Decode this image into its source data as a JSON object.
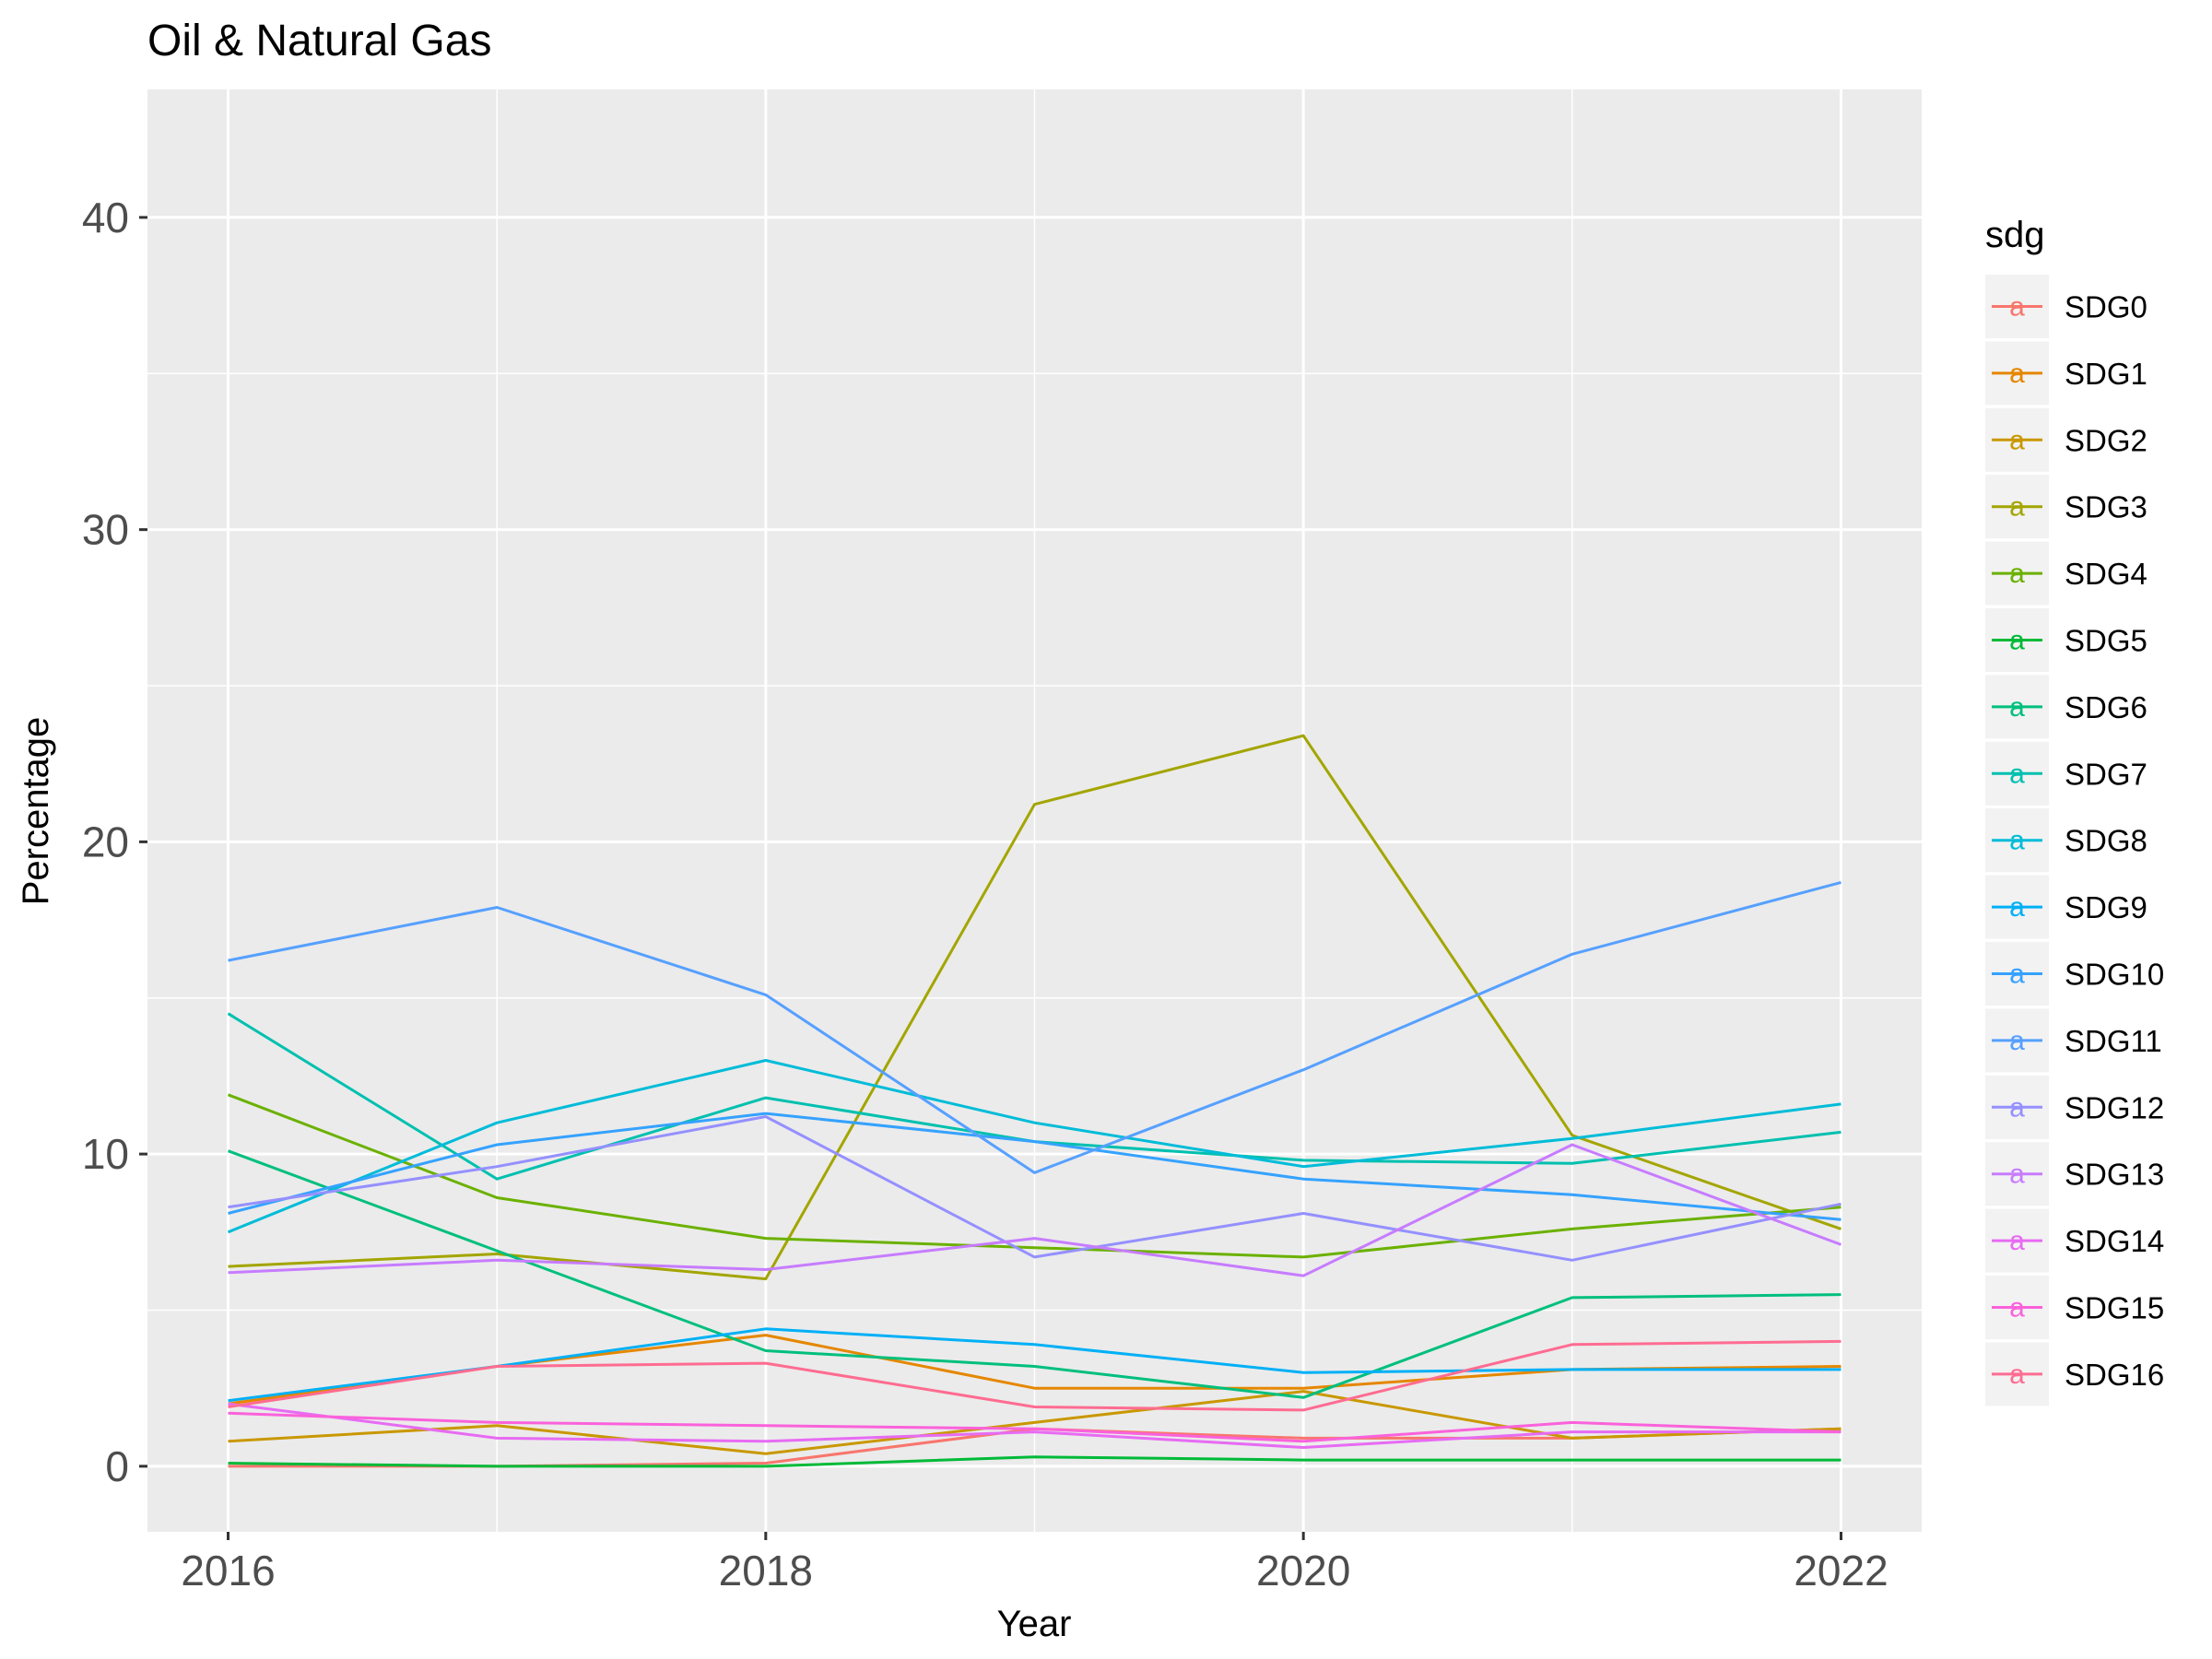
{
  "chart_data": {
    "type": "line",
    "title": "Oil & Natural Gas",
    "xlabel": "Year",
    "ylabel": "Percentage",
    "xlim": [
      2015.7,
      2022.3
    ],
    "ylim": [
      -2.1,
      44.1
    ],
    "x_ticks": [
      2016,
      2018,
      2020,
      2022
    ],
    "x_tick_labels": [
      "2016",
      "2018",
      "2020",
      "2022"
    ],
    "y_ticks": [
      0,
      10,
      20,
      30,
      40
    ],
    "y_tick_labels": [
      "0",
      "10",
      "20",
      "30",
      "40"
    ],
    "grid": true,
    "legend": {
      "title": "sdg",
      "position": "right",
      "key_glyph": "a"
    },
    "x": [
      2016,
      2017,
      2018,
      2019,
      2020,
      2021,
      2022
    ],
    "series": [
      {
        "name": "SDG0",
        "color": "#F8766D",
        "values": [
          0.0,
          0.0,
          0.1,
          1.2,
          0.9,
          0.9,
          1.2
        ]
      },
      {
        "name": "SDG1",
        "color": "#E58700",
        "values": [
          2.0,
          3.2,
          4.2,
          2.5,
          2.5,
          3.1,
          3.2
        ]
      },
      {
        "name": "SDG2",
        "color": "#C99800",
        "values": [
          0.8,
          1.3,
          0.4,
          1.4,
          2.4,
          0.9,
          1.2
        ]
      },
      {
        "name": "SDG3",
        "color": "#A3A500",
        "values": [
          6.4,
          6.8,
          6.0,
          21.2,
          23.4,
          10.6,
          7.6
        ]
      },
      {
        "name": "SDG4",
        "color": "#6BB100",
        "values": [
          11.9,
          8.6,
          7.3,
          7.0,
          6.7,
          7.6,
          8.3
        ]
      },
      {
        "name": "SDG5",
        "color": "#00BA38",
        "values": [
          0.1,
          0.0,
          0.0,
          0.3,
          0.2,
          0.2,
          0.2
        ]
      },
      {
        "name": "SDG6",
        "color": "#00BF7D",
        "values": [
          10.1,
          6.9,
          3.7,
          3.2,
          2.2,
          5.4,
          5.5
        ]
      },
      {
        "name": "SDG7",
        "color": "#00C0AF",
        "values": [
          14.5,
          9.2,
          11.8,
          10.4,
          9.8,
          9.7,
          10.7
        ]
      },
      {
        "name": "SDG8",
        "color": "#00BCD8",
        "values": [
          7.5,
          11.0,
          13.0,
          11.0,
          9.6,
          10.5,
          11.6
        ]
      },
      {
        "name": "SDG9",
        "color": "#00B0F6",
        "values": [
          2.1,
          3.2,
          4.4,
          3.9,
          3.0,
          3.1,
          3.1
        ]
      },
      {
        "name": "SDG10",
        "color": "#35A2FF",
        "values": [
          8.1,
          10.3,
          11.3,
          10.4,
          9.2,
          8.7,
          7.9
        ]
      },
      {
        "name": "SDG11",
        "color": "#56A0FF",
        "values": [
          16.2,
          17.9,
          15.1,
          9.4,
          12.7,
          16.4,
          18.7
        ]
      },
      {
        "name": "SDG12",
        "color": "#9590FF",
        "values": [
          8.3,
          9.6,
          11.2,
          6.7,
          8.1,
          6.6,
          8.4
        ]
      },
      {
        "name": "SDG13",
        "color": "#C77CFF",
        "values": [
          6.2,
          6.6,
          6.3,
          7.3,
          6.1,
          10.3,
          7.1
        ]
      },
      {
        "name": "SDG14",
        "color": "#E76BF3",
        "values": [
          2.0,
          0.9,
          0.8,
          1.1,
          0.6,
          1.1,
          1.1
        ]
      },
      {
        "name": "SDG15",
        "color": "#FA62DB",
        "values": [
          1.7,
          1.4,
          1.3,
          1.2,
          0.8,
          1.4,
          1.1
        ]
      },
      {
        "name": "SDG16",
        "color": "#FF6C91",
        "values": [
          1.9,
          3.2,
          3.3,
          1.9,
          1.8,
          3.9,
          4.0
        ]
      }
    ]
  }
}
